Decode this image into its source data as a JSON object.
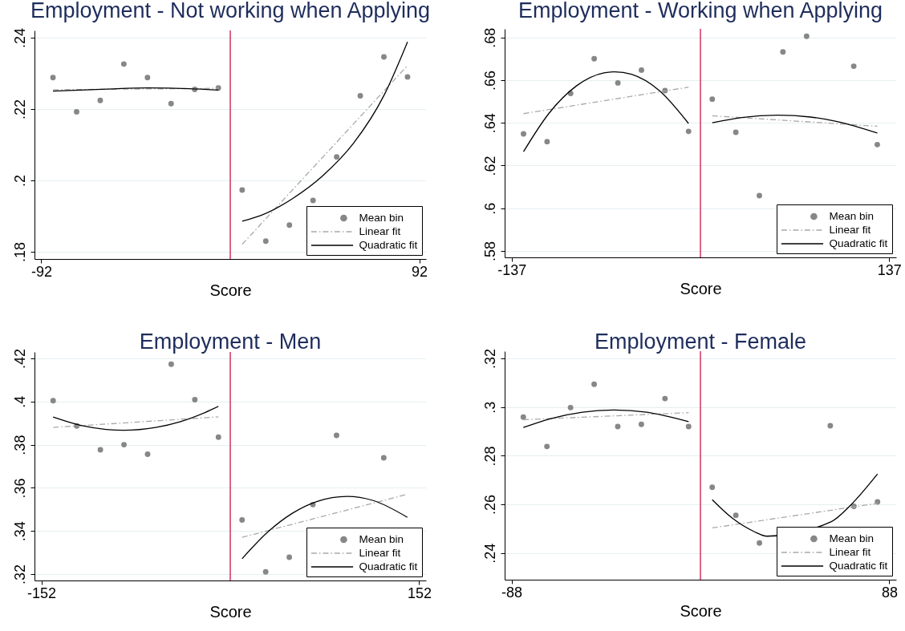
{
  "chart_data": [
    {
      "type": "scatter",
      "title": "Employment - Not working when Applying",
      "xlabel": "Score",
      "xlim": [
        -95.3,
        95.3
      ],
      "xticks": [
        -92,
        92
      ],
      "ylim": [
        0.178,
        0.242
      ],
      "yticks": [
        {
          "value": 0.18,
          "label": ".18"
        },
        {
          "value": 0.2,
          "label": ".2"
        },
        {
          "value": 0.22,
          "label": ".22"
        },
        {
          "value": 0.24,
          "label": ".24"
        }
      ],
      "grid": "y",
      "legend": "bottom right",
      "ref_lines": [
        {
          "axis": "x",
          "value": 0,
          "color": "#cc1144"
        }
      ],
      "series": [
        {
          "name": "Mean bin",
          "type": "scatter",
          "marker": "circle",
          "color": "#878787",
          "x": [
            -86.3,
            -74.8,
            -63.3,
            -51.8,
            -40.3,
            -28.8,
            -17.3,
            -5.8,
            5.8,
            17.3,
            28.8,
            40.3,
            51.8,
            63.3,
            74.8,
            86.3
          ],
          "values": [
            0.2288,
            0.2192,
            0.2224,
            0.2326,
            0.2288,
            0.2215,
            0.2255,
            0.2259,
            0.1973,
            0.183,
            0.1875,
            0.1944,
            0.2066,
            0.2237,
            0.2346,
            0.229
          ]
        },
        {
          "name": "Linear fit",
          "type": "line",
          "line_style": "dashed",
          "color": "#a9a9a9",
          "x": [
            -86.3,
            -5.8,
            0,
            5.8,
            86.3
          ],
          "values": [
            0.2254,
            0.2258,
            null,
            0.1821,
            0.2322
          ]
        },
        {
          "name": "Quadratic fit",
          "type": "line",
          "line_style": "solid",
          "color": "#000000",
          "x": [
            -86.3,
            -60,
            -40,
            -20,
            -5.8,
            0,
            5.8,
            15,
            30,
            45,
            60,
            75,
            86.3
          ],
          "values": [
            0.225,
            0.2256,
            0.2259,
            0.2257,
            0.2253,
            null,
            0.1886,
            0.1902,
            0.1948,
            0.2013,
            0.2104,
            0.224,
            0.2388
          ]
        }
      ]
    },
    {
      "type": "scatter",
      "title": "Employment - Working when Applying",
      "xlabel": "Score",
      "xlim": [
        -142.1,
        142.1
      ],
      "xticks": [
        -137,
        137
      ],
      "ylim": [
        0.577,
        0.684
      ],
      "yticks": [
        {
          "value": 0.58,
          "label": ".58"
        },
        {
          "value": 0.6,
          "label": ".6"
        },
        {
          "value": 0.62,
          "label": ".62"
        },
        {
          "value": 0.64,
          "label": ".64"
        },
        {
          "value": 0.66,
          "label": ".66"
        },
        {
          "value": 0.68,
          "label": ".68"
        }
      ],
      "grid": "y",
      "legend": "bottom right",
      "ref_lines": [
        {
          "axis": "x",
          "value": 0,
          "color": "#cc1144"
        }
      ],
      "series": [
        {
          "name": "Mean bin",
          "type": "scatter",
          "marker": "circle",
          "color": "#878787",
          "x": [
            -128.4,
            -111.3,
            -94.2,
            -77.1,
            -59.9,
            -42.8,
            -25.7,
            -8.6,
            8.6,
            25.7,
            42.8,
            59.9,
            77.1,
            111.3,
            128.4
          ],
          "values": [
            0.6348,
            0.6312,
            0.6538,
            0.67,
            0.6587,
            0.6647,
            0.6551,
            0.636,
            0.6511,
            0.6356,
            0.6059,
            0.6732,
            0.6805,
            0.6665,
            0.6298
          ]
        },
        {
          "name": "Linear fit",
          "type": "line",
          "line_style": "dashed",
          "color": "#a9a9a9",
          "x": [
            -128.4,
            -8.6,
            0,
            8.6,
            128.4
          ],
          "values": [
            0.6443,
            0.6567,
            null,
            0.6433,
            0.6384
          ]
        },
        {
          "name": "Quadratic fit",
          "type": "line",
          "line_style": "solid",
          "color": "#000000",
          "x": [
            -128.4,
            -110,
            -90,
            -70,
            -62,
            -50,
            -30,
            -8.6,
            0,
            8.6,
            30,
            56,
            80,
            100,
            128.4
          ],
          "values": [
            0.6265,
            0.6444,
            0.6573,
            0.6634,
            0.6639,
            0.6627,
            0.6552,
            0.6397,
            null,
            0.64,
            0.6425,
            0.6436,
            0.6427,
            0.6405,
            0.6352
          ]
        }
      ]
    },
    {
      "type": "scatter",
      "title": "Employment - Men",
      "xlabel": "Score",
      "xlim": [
        -157.5,
        157.5
      ],
      "xticks": [
        -152,
        152
      ],
      "ylim": [
        0.317,
        0.423
      ],
      "yticks": [
        {
          "value": 0.32,
          "label": ".32"
        },
        {
          "value": 0.34,
          "label": ".34"
        },
        {
          "value": 0.36,
          "label": ".36"
        },
        {
          "value": 0.38,
          "label": ".38"
        },
        {
          "value": 0.4,
          "label": ".4"
        },
        {
          "value": 0.42,
          "label": ".42"
        }
      ],
      "grid": "y",
      "legend": "bottom right",
      "ref_lines": [
        {
          "axis": "x",
          "value": 0,
          "color": "#cc1144"
        }
      ],
      "series": [
        {
          "name": "Mean bin",
          "type": "scatter",
          "marker": "circle",
          "color": "#878787",
          "x": [
            -142.5,
            -123.5,
            -104.5,
            -85.5,
            -66.5,
            -47.5,
            -28.5,
            -9.5,
            9.5,
            28.5,
            47.5,
            66.5,
            85.5,
            123.5
          ],
          "values": [
            0.4004,
            0.3887,
            0.3776,
            0.38,
            0.3756,
            0.4173,
            0.4009,
            0.3835,
            0.3451,
            0.321,
            0.3278,
            0.3522,
            0.3843,
            0.3739
          ]
        },
        {
          "name": "Linear fit",
          "type": "line",
          "line_style": "dashed",
          "color": "#a9a9a9",
          "x": [
            -142.5,
            -9.5,
            0,
            9.5,
            142.5
          ],
          "values": [
            0.388,
            0.3929,
            null,
            0.337,
            0.357
          ]
        },
        {
          "name": "Quadratic fit",
          "type": "line",
          "line_style": "solid",
          "color": "#000000",
          "x": [
            -142.5,
            -120,
            -100,
            -86,
            -60,
            -40,
            -20,
            -9.5,
            0,
            9.5,
            30,
            50,
            70,
            94,
            115,
            142.5
          ],
          "values": [
            0.3928,
            0.3889,
            0.3871,
            0.3867,
            0.388,
            0.3907,
            0.395,
            0.3978,
            null,
            0.3271,
            0.3394,
            0.3482,
            0.3537,
            0.356,
            0.3541,
            0.3463
          ]
        }
      ]
    },
    {
      "type": "scatter",
      "title": "Employment - Female",
      "xlabel": "Score",
      "xlim": [
        -91.2,
        91.2
      ],
      "xticks": [
        -88,
        88
      ],
      "ylim": [
        0.229,
        0.323
      ],
      "yticks": [
        {
          "value": 0.24,
          "label": ".24"
        },
        {
          "value": 0.26,
          "label": ".26"
        },
        {
          "value": 0.28,
          "label": ".28"
        },
        {
          "value": 0.3,
          "label": ".3"
        },
        {
          "value": 0.32,
          "label": ".32"
        }
      ],
      "grid": "y",
      "legend": "bottom right",
      "ref_lines": [
        {
          "axis": "x",
          "value": 0,
          "color": "#cc1144"
        }
      ],
      "series": [
        {
          "name": "Mean bin",
          "type": "scatter",
          "marker": "circle",
          "color": "#878787",
          "x": [
            -82.5,
            -71.5,
            -60.5,
            -49.5,
            -38.5,
            -27.5,
            -16.5,
            -5.5,
            5.5,
            16.5,
            27.5,
            60.5,
            71.5,
            82.5
          ],
          "values": [
            0.2959,
            0.2838,
            0.2998,
            0.3094,
            0.292,
            0.2929,
            0.3035,
            0.292,
            0.267,
            0.2555,
            0.2441,
            0.2923,
            0.2592,
            0.261
          ]
        },
        {
          "name": "Linear fit",
          "type": "line",
          "line_style": "dashed",
          "color": "#a9a9a9",
          "x": [
            -82.5,
            -5.5,
            0,
            5.5,
            82.5
          ],
          "values": [
            0.2948,
            0.2977,
            null,
            0.2503,
            0.2604
          ]
        },
        {
          "name": "Quadratic fit",
          "type": "line",
          "line_style": "solid",
          "color": "#000000",
          "x": [
            -82.5,
            -70,
            -55,
            -40,
            -25,
            -5.5,
            0,
            5.5,
            15,
            25,
            31,
            61,
            70,
            82.5
          ],
          "values": [
            0.2916,
            0.2952,
            0.2979,
            0.2988,
            0.2979,
            0.294,
            null,
            0.2619,
            0.2542,
            0.2488,
            0.2469,
            0.2529,
            0.2597,
            0.2725
          ]
        }
      ]
    }
  ]
}
